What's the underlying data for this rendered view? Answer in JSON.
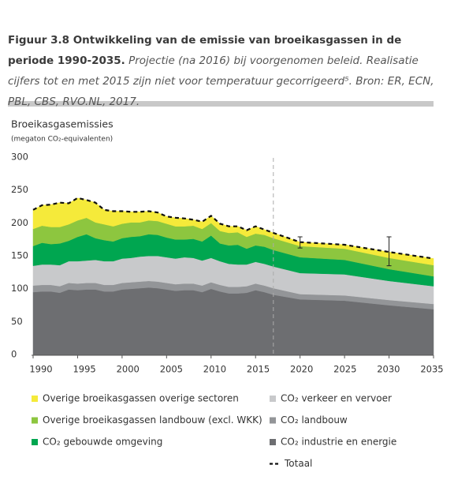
{
  "chart_data": {
    "type": "stacked_area",
    "title": "Figuur 3.8 Ontwikkeling van de emissie van broeikasgassen in de periode 1990-2035.",
    "subtitle": "Projectie (na 2016) bij voorgenomen beleid. Realisatie cijfers tot en met 2015 zijn niet voor temperatuur gecorrigeerd⁵. Bron: ER, ECN, PBL, CBS, RVO.NL, 2017.",
    "y_label": "Broeikasgasemissies",
    "y_unit": "(megaton CO₂-equivalenten)",
    "x": [
      1990,
      1991,
      1992,
      1993,
      1994,
      1995,
      1996,
      1997,
      1998,
      1999,
      2000,
      2001,
      2002,
      2003,
      2004,
      2005,
      2006,
      2007,
      2008,
      2009,
      2010,
      2011,
      2012,
      2013,
      2014,
      2015,
      2016,
      2017,
      2020,
      2025,
      2030,
      2035
    ],
    "xlim": [
      1990,
      2035
    ],
    "xticks": [
      1990,
      1995,
      2000,
      2005,
      2010,
      2015,
      2020,
      2025,
      2030,
      2035
    ],
    "ylim": [
      0,
      300
    ],
    "yticks": [
      0,
      50,
      100,
      150,
      200,
      250,
      300
    ],
    "projection_start": 2017,
    "series": [
      {
        "name": "CO₂ industrie en energie",
        "color": "#6d6e71",
        "values": [
          96,
          97,
          97,
          95,
          100,
          99,
          100,
          100,
          97,
          97,
          100,
          101,
          102,
          103,
          102,
          100,
          98,
          99,
          99,
          96,
          101,
          97,
          94,
          94,
          95,
          99,
          96,
          92,
          85,
          83,
          76,
          70
        ]
      },
      {
        "name": "CO₂ landbouw",
        "color": "#939598",
        "values": [
          10,
          10,
          10,
          10,
          10,
          10,
          10,
          10,
          10,
          10,
          10,
          10,
          10,
          10,
          10,
          10,
          10,
          10,
          10,
          10,
          10,
          10,
          10,
          10,
          10,
          10,
          10,
          10,
          8,
          8,
          8,
          8
        ]
      },
      {
        "name": "CO₂ verkeer en vervoer",
        "color": "#c8c9cb",
        "values": [
          30,
          31,
          31,
          32,
          33,
          34,
          34,
          35,
          36,
          36,
          37,
          37,
          38,
          38,
          39,
          39,
          39,
          40,
          39,
          38,
          37,
          36,
          35,
          34,
          33,
          33,
          33,
          33,
          32,
          32,
          29,
          27
        ]
      },
      {
        "name": "CO₂ gebouwde omgeving",
        "color": "#00a650",
        "values": [
          30,
          33,
          31,
          33,
          31,
          37,
          40,
          33,
          32,
          30,
          31,
          32,
          31,
          33,
          32,
          30,
          29,
          27,
          29,
          29,
          34,
          27,
          28,
          30,
          24,
          25,
          26,
          25,
          24,
          22,
          18,
          15
        ]
      },
      {
        "name": "Overige broeikasgassen landbouw (excl. WKK)",
        "color": "#8dc63f",
        "values": [
          26,
          26,
          26,
          25,
          25,
          25,
          25,
          24,
          24,
          23,
          22,
          22,
          21,
          21,
          21,
          21,
          20,
          20,
          20,
          19,
          19,
          19,
          19,
          19,
          18,
          18,
          18,
          18,
          17,
          17,
          17,
          17
        ]
      },
      {
        "name": "Overige broeikasgassen overige sectoren",
        "color": "#f5ea3a",
        "values": [
          29,
          31,
          34,
          37,
          32,
          34,
          27,
          30,
          22,
          23,
          19,
          16,
          16,
          14,
          13,
          11,
          13,
          12,
          9,
          11,
          11,
          11,
          10,
          9,
          10,
          11,
          8,
          8,
          6,
          6,
          9,
          10
        ]
      }
    ],
    "total": {
      "name": "Totaal",
      "color": "#111111",
      "values": [
        221,
        228,
        229,
        232,
        231,
        239,
        236,
        232,
        221,
        219,
        219,
        218,
        218,
        219,
        217,
        211,
        209,
        208,
        206,
        203,
        212,
        200,
        196,
        196,
        190,
        196,
        191,
        186,
        172,
        168,
        157,
        147
      ]
    },
    "error_bars": [
      {
        "x": 2020,
        "low": 163,
        "high": 180
      },
      {
        "x": 2030,
        "low": 136,
        "high": 180
      }
    ]
  }
}
